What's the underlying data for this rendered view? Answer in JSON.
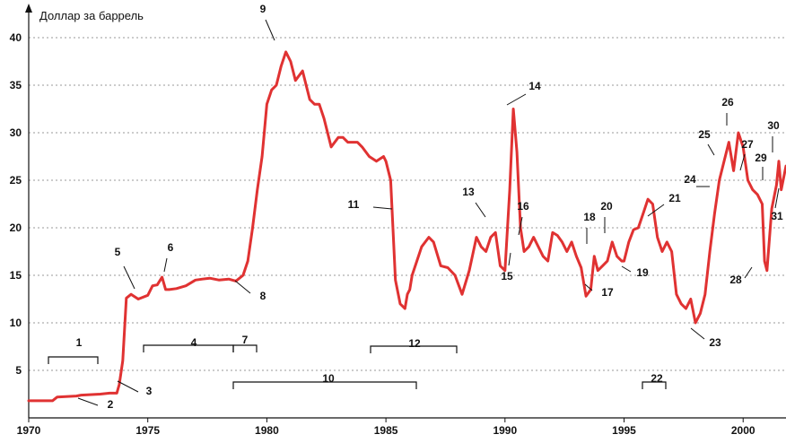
{
  "chart_data": {
    "type": "line",
    "ylabel": "Доллар за баррель",
    "xlabel": "",
    "xlim": [
      1970,
      2001.8
    ],
    "ylim": [
      0,
      42
    ],
    "grid": true,
    "line_color": "#e03232",
    "x_ticks": [
      "1970",
      "1975",
      "1980",
      "1985",
      "1990",
      "1995",
      "2000"
    ],
    "y_ticks": [
      "5",
      "10",
      "15",
      "20",
      "25",
      "30",
      "35",
      "40"
    ],
    "series": [
      {
        "x": [
          1970.0,
          1971.0,
          1971.2,
          1972.0,
          1972.2,
          1973.0,
          1973.4,
          1973.7,
          1973.8,
          1973.95,
          1974.1,
          1974.3,
          1974.6,
          1975.0,
          1975.2,
          1975.4,
          1975.6,
          1975.75,
          1975.9,
          1976.2,
          1976.6,
          1977.0,
          1977.3,
          1977.6,
          1978.0,
          1978.4,
          1978.7,
          1979.0,
          1979.2,
          1979.4,
          1979.6,
          1979.8,
          1980.0,
          1980.2,
          1980.4,
          1980.6,
          1980.8,
          1981.0,
          1981.2,
          1981.5,
          1981.8,
          1982.0,
          1982.2,
          1982.4,
          1982.7,
          1983.0,
          1983.2,
          1983.4,
          1983.8,
          1984.0,
          1984.3,
          1984.6,
          1984.9,
          1985.0,
          1985.2,
          1985.4,
          1985.6,
          1985.8,
          1985.9,
          1986.0,
          1986.1,
          1986.3,
          1986.5,
          1986.8,
          1987.0,
          1987.3,
          1987.6,
          1987.9,
          1988.2,
          1988.5,
          1988.8,
          1989.0,
          1989.2,
          1989.4,
          1989.6,
          1989.8,
          1990.0,
          1990.2,
          1990.35,
          1990.5,
          1990.65,
          1990.8,
          1991.0,
          1991.2,
          1991.4,
          1991.6,
          1991.8,
          1992.0,
          1992.2,
          1992.4,
          1992.6,
          1992.8,
          1993.0,
          1993.2,
          1993.4,
          1993.6,
          1993.75,
          1993.9,
          1994.1,
          1994.3,
          1994.5,
          1994.7,
          1994.9,
          1995.0,
          1995.2,
          1995.4,
          1995.6,
          1995.8,
          1996.0,
          1996.2,
          1996.4,
          1996.6,
          1996.8,
          1997.0,
          1997.2,
          1997.4,
          1997.6,
          1997.8,
          1998.0,
          1998.2,
          1998.4,
          1998.6,
          1998.8,
          1999.0,
          1999.2,
          1999.4,
          1999.6,
          1999.8,
          2000.0,
          2000.2,
          2000.4,
          2000.6,
          2000.8,
          2000.9,
          2001.0,
          2001.2,
          2001.4,
          2001.5,
          2001.6,
          2001.8
        ],
        "values": [
          1.8,
          1.8,
          2.2,
          2.3,
          2.4,
          2.5,
          2.6,
          2.6,
          3.5,
          6.0,
          12.6,
          13.0,
          12.5,
          12.9,
          13.9,
          14.0,
          14.8,
          13.5,
          13.5,
          13.6,
          13.9,
          14.5,
          14.6,
          14.7,
          14.5,
          14.6,
          14.4,
          15.0,
          16.5,
          20.0,
          24.0,
          27.5,
          33.0,
          34.5,
          35.0,
          37.0,
          38.5,
          37.5,
          35.5,
          36.5,
          33.5,
          33.0,
          33.0,
          31.5,
          28.5,
          29.5,
          29.5,
          29.0,
          29.0,
          28.5,
          27.5,
          27.0,
          27.5,
          27.0,
          25.0,
          14.5,
          12.0,
          11.5,
          13.0,
          13.5,
          15.0,
          16.5,
          18.0,
          19.0,
          18.5,
          16.0,
          15.8,
          15.0,
          13.0,
          15.5,
          19.0,
          18.0,
          17.5,
          19.0,
          19.5,
          16.0,
          15.5,
          24.0,
          32.5,
          28.0,
          20.0,
          17.5,
          18.0,
          19.0,
          18.0,
          17.0,
          16.5,
          19.5,
          19.2,
          18.5,
          17.5,
          18.5,
          17.0,
          15.8,
          12.8,
          13.5,
          17.0,
          15.5,
          16.0,
          16.5,
          18.5,
          17.0,
          16.5,
          16.5,
          18.5,
          19.8,
          20.0,
          21.5,
          23.0,
          22.5,
          19.0,
          17.5,
          18.5,
          17.5,
          13.0,
          12.0,
          11.5,
          12.5,
          10.0,
          11.0,
          13.0,
          17.5,
          21.5,
          25.0,
          27.0,
          29.0,
          26.0,
          30.0,
          28.5,
          25.0,
          24.0,
          23.5,
          22.5,
          16.5,
          15.5,
          22.0,
          24.5,
          27.0,
          24.0,
          26.5
        ]
      }
    ],
    "annotations": [
      "1",
      "2",
      "3",
      "4",
      "5",
      "6",
      "7",
      "8",
      "9",
      "10",
      "11",
      "12",
      "13",
      "14",
      "15",
      "16",
      "17",
      "18",
      "19",
      "20",
      "21",
      "22",
      "23",
      "24",
      "25",
      "26",
      "27",
      "28",
      "29",
      "30",
      "31"
    ]
  }
}
